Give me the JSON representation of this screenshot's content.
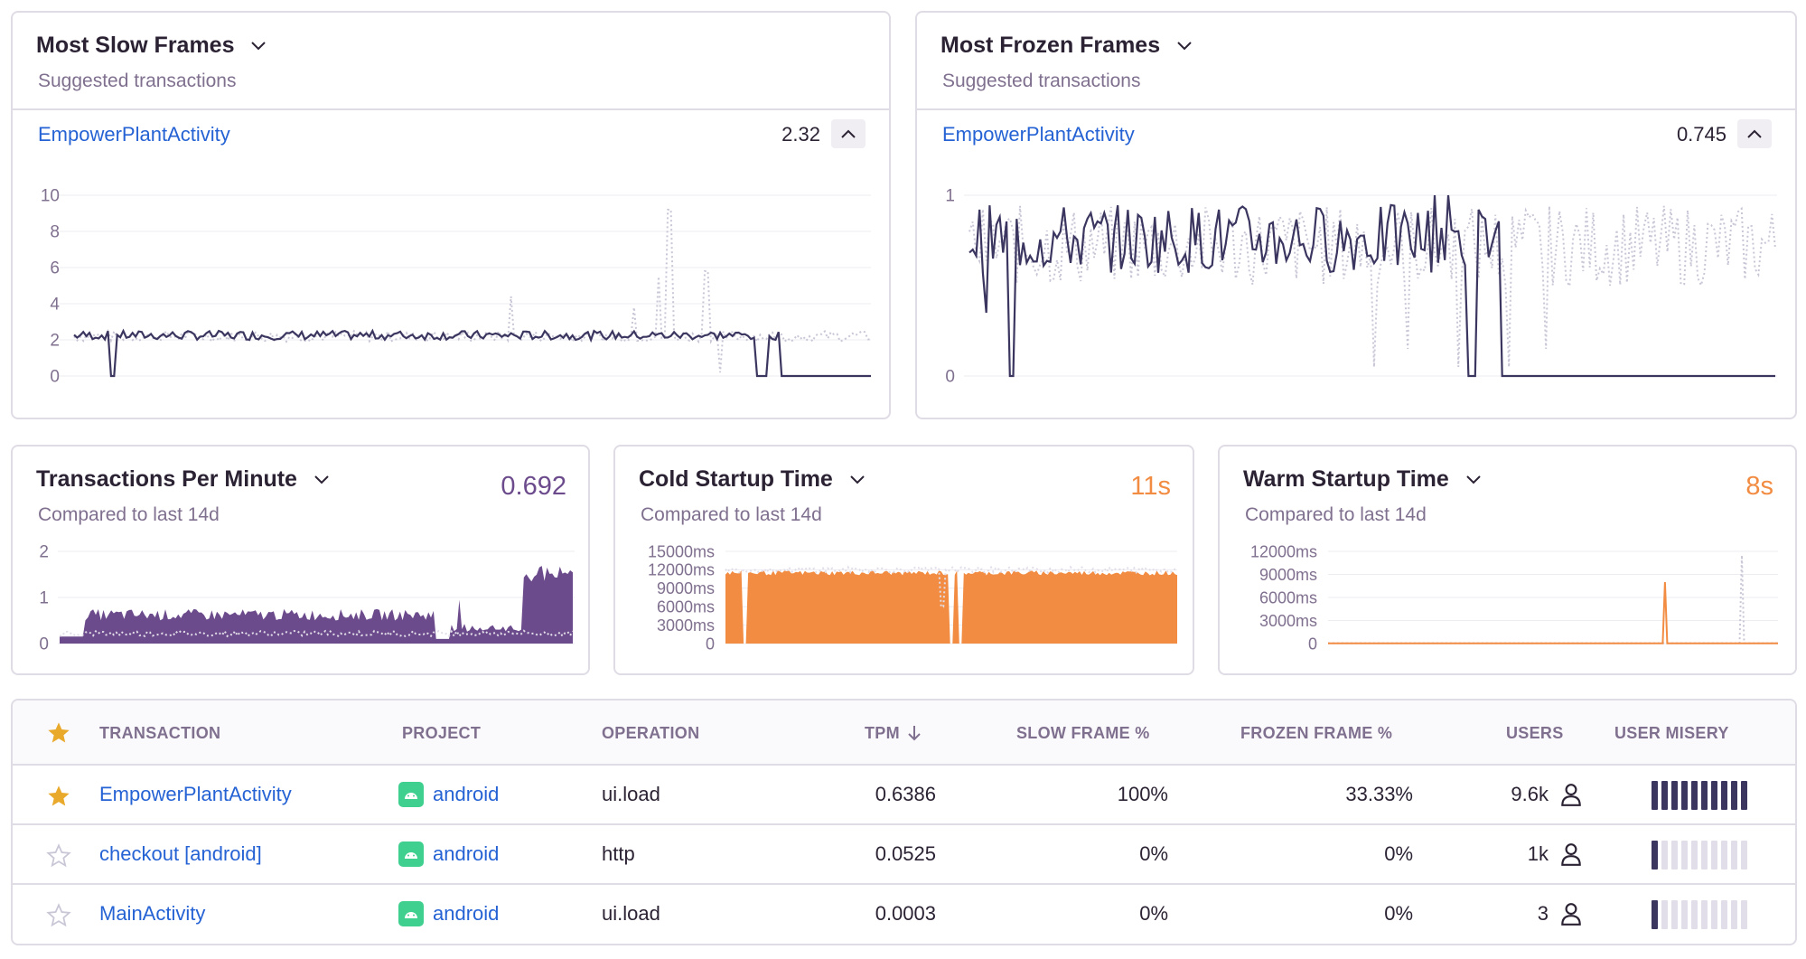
{
  "slow_frames": {
    "title": "Most Slow Frames",
    "subtitle": "Suggested transactions",
    "transaction": "EmpowerPlantActivity",
    "value": "2.32",
    "y_ticks": [
      "10",
      "8",
      "6",
      "4",
      "2",
      "0"
    ]
  },
  "frozen_frames": {
    "title": "Most Frozen Frames",
    "subtitle": "Suggested transactions",
    "transaction": "EmpowerPlantActivity",
    "value": "0.745",
    "y_ticks": [
      "1",
      "0"
    ]
  },
  "tpm": {
    "title": "Transactions Per Minute",
    "subtitle": "Compared to last 14d",
    "value": "0.692",
    "y_ticks": [
      "2",
      "1",
      "0"
    ]
  },
  "cold_startup": {
    "title": "Cold Startup Time",
    "subtitle": "Compared to last 14d",
    "value": "11s",
    "y_ticks": [
      "15000ms",
      "12000ms",
      "9000ms",
      "6000ms",
      "3000ms",
      "0"
    ]
  },
  "warm_startup": {
    "title": "Warm Startup Time",
    "subtitle": "Compared to last 14d",
    "value": "8s",
    "y_ticks": [
      "12000ms",
      "9000ms",
      "6000ms",
      "3000ms",
      "0"
    ]
  },
  "colors": {
    "accent_link": "#2562d4",
    "series_dark": "#3b3660",
    "series_compare": "#c9c6d6",
    "tpm_fill": "#6c4b8c",
    "startup_fill": "#f28c42",
    "star_active": "#e9a92b",
    "android": "#3fcf8e"
  },
  "table": {
    "headers": {
      "transaction": "TRANSACTION",
      "project": "PROJECT",
      "operation": "OPERATION",
      "tpm": "TPM",
      "slow": "SLOW FRAME %",
      "frozen": "FROZEN FRAME %",
      "users": "USERS",
      "misery": "USER MISERY"
    },
    "rows": [
      {
        "starred": true,
        "transaction": "EmpowerPlantActivity",
        "project": "android",
        "operation": "ui.load",
        "tpm": "0.6386",
        "slow": "100%",
        "frozen": "33.33%",
        "users": "9.6k",
        "misery_level": 1.0
      },
      {
        "starred": false,
        "transaction": "checkout [android]",
        "project": "android",
        "operation": "http",
        "tpm": "0.0525",
        "slow": "0%",
        "frozen": "0%",
        "users": "1k",
        "misery_level": 0.1
      },
      {
        "starred": false,
        "transaction": "MainActivity",
        "project": "android",
        "operation": "ui.load",
        "tpm": "0.0003",
        "slow": "0%",
        "frozen": "0%",
        "users": "3",
        "misery_level": 0.1
      }
    ]
  }
}
